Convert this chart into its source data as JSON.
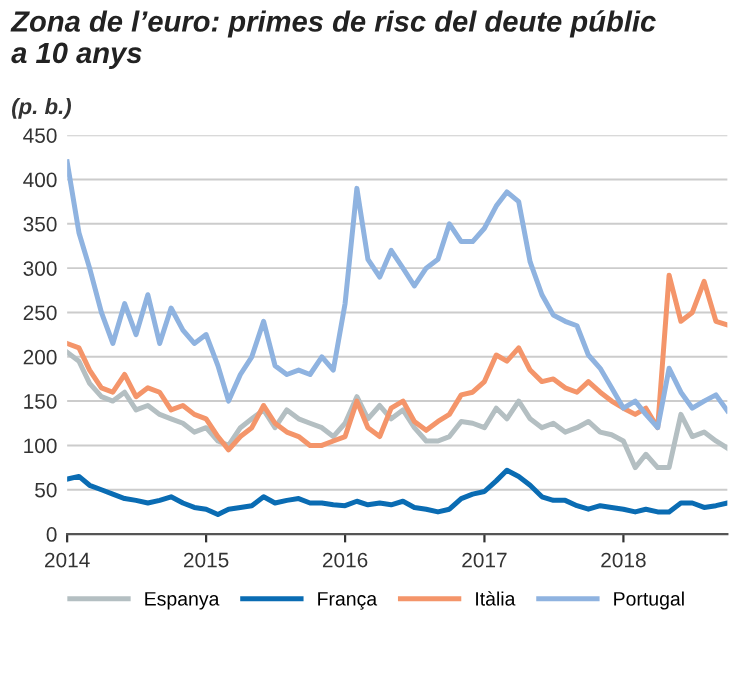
{
  "chart_data": {
    "type": "line",
    "title": "Zona de l’euro: primes de risc del deute públic\na 10 anys",
    "subtitle": "(p. b.)",
    "x": [
      "2014-01",
      "2014-02",
      "2014-03",
      "2014-04",
      "2014-05",
      "2014-06",
      "2014-07",
      "2014-08",
      "2014-09",
      "2014-10",
      "2014-11",
      "2014-12",
      "2015-01",
      "2015-02",
      "2015-03",
      "2015-04",
      "2015-05",
      "2015-06",
      "2015-07",
      "2015-08",
      "2015-09",
      "2015-10",
      "2015-11",
      "2015-12",
      "2016-01",
      "2016-02",
      "2016-03",
      "2016-04",
      "2016-05",
      "2016-06",
      "2016-07",
      "2016-08",
      "2016-09",
      "2016-10",
      "2016-11",
      "2016-12",
      "2017-01",
      "2017-02",
      "2017-03",
      "2017-04",
      "2017-05",
      "2017-06",
      "2017-07",
      "2017-08",
      "2017-09",
      "2017-10",
      "2017-11",
      "2017-12",
      "2018-01",
      "2018-02",
      "2018-03",
      "2018-04",
      "2018-05",
      "2018-06",
      "2018-07",
      "2018-08",
      "2018-09",
      "2018-10"
    ],
    "series": [
      {
        "name": "Espanya",
        "color": "#b4bfc2",
        "values": [
          205,
          195,
          170,
          155,
          150,
          160,
          140,
          145,
          135,
          130,
          125,
          115,
          120,
          105,
          100,
          120,
          130,
          140,
          120,
          140,
          130,
          125,
          120,
          110,
          125,
          155,
          130,
          145,
          130,
          140,
          120,
          105,
          105,
          110,
          127,
          125,
          120,
          142,
          130,
          150,
          130,
          120,
          125,
          115,
          120,
          127,
          115,
          112,
          105,
          75,
          90,
          75,
          75,
          135,
          110,
          115,
          105,
          97
        ]
      },
      {
        "name": "França",
        "color": "#0a6cb3",
        "values": [
          62,
          65,
          55,
          50,
          45,
          40,
          38,
          35,
          38,
          42,
          35,
          30,
          28,
          22,
          28,
          30,
          32,
          42,
          35,
          38,
          40,
          35,
          35,
          33,
          32,
          37,
          33,
          35,
          33,
          37,
          30,
          28,
          25,
          28,
          40,
          45,
          48,
          60,
          72,
          65,
          55,
          42,
          38,
          38,
          32,
          28,
          32,
          30,
          28,
          25,
          28,
          25,
          25,
          35,
          35,
          30,
          32,
          35
        ]
      },
      {
        "name": "Itàlia",
        "color": "#f4956a",
        "values": [
          215,
          210,
          185,
          165,
          160,
          180,
          155,
          165,
          160,
          140,
          145,
          135,
          130,
          110,
          95,
          110,
          120,
          145,
          125,
          115,
          110,
          100,
          100,
          105,
          110,
          150,
          120,
          110,
          142,
          150,
          127,
          117,
          127,
          135,
          157,
          160,
          172,
          202,
          195,
          210,
          185,
          172,
          175,
          165,
          160,
          172,
          160,
          150,
          142,
          135,
          142,
          120,
          292,
          240,
          250,
          285,
          240,
          236
        ]
      },
      {
        "name": "Portugal",
        "color": "#8fb3e0",
        "values": [
          420,
          340,
          300,
          250,
          215,
          260,
          225,
          270,
          215,
          255,
          230,
          215,
          225,
          190,
          150,
          180,
          200,
          240,
          190,
          180,
          185,
          180,
          200,
          185,
          260,
          390,
          310,
          290,
          320,
          300,
          280,
          300,
          310,
          350,
          330,
          330,
          345,
          370,
          386,
          375,
          307,
          270,
          247,
          240,
          235,
          202,
          187,
          165,
          142,
          150,
          135,
          120,
          187,
          160,
          142,
          150,
          157,
          139
        ]
      }
    ],
    "xlim": [
      "2014-01",
      "2018-10"
    ],
    "xticks": [
      "2014",
      "2015",
      "2016",
      "2017",
      "2018"
    ],
    "ylim": [
      0,
      450
    ],
    "yticks": [
      0,
      50,
      100,
      150,
      200,
      250,
      300,
      350,
      400,
      450
    ],
    "grid": "y",
    "legend": "bottom",
    "line_style": "solid"
  }
}
